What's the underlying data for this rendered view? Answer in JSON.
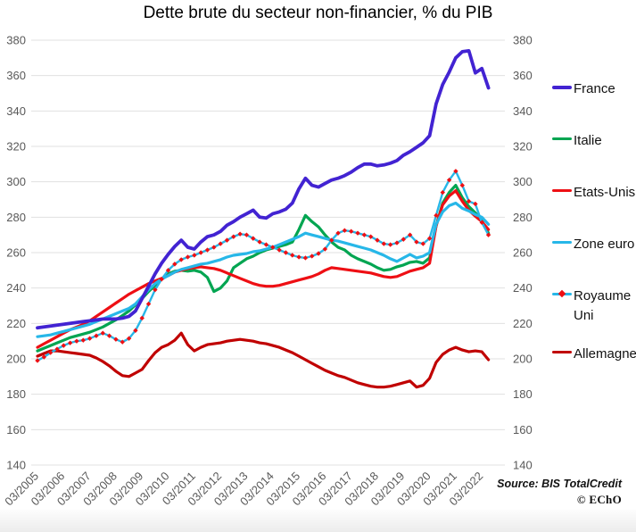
{
  "title": "Dette brute du secteur non-financier, % du PIB",
  "source": {
    "line1": "Source: BIS TotalCredit",
    "line2": "© EChO"
  },
  "chart_data": {
    "type": "line",
    "title": "Dette brute du secteur non-financier, % du PIB",
    "frequency": "quarterly",
    "x_start": "2005-Q1",
    "x_end": "2022-Q2",
    "x_tick_labels": [
      "03/2005",
      "03/2006",
      "03/2007",
      "03/2008",
      "03/2009",
      "03/2010",
      "03/2011",
      "03/2012",
      "03/2013",
      "03/2014",
      "03/2015",
      "03/2016",
      "03/2017",
      "03/2018",
      "03/2019",
      "03/2020",
      "03/2021",
      "03/2022"
    ],
    "ylim": [
      140,
      380
    ],
    "y_ticks": [
      140,
      160,
      180,
      200,
      220,
      240,
      260,
      280,
      300,
      320,
      340,
      360,
      380
    ],
    "y_tick_interval": 20,
    "grid": "horizontal",
    "legend_position": "right",
    "series": [
      {
        "name": "France",
        "color": "#4223d2",
        "width": 3.8,
        "values": [
          217.5,
          218,
          218.5,
          219,
          219.5,
          220,
          220.5,
          221,
          221.5,
          222,
          222.5,
          222.5,
          222.5,
          223,
          224,
          227,
          234,
          241,
          248,
          254,
          259,
          263.5,
          267,
          263,
          262,
          266,
          269,
          270,
          272,
          275.5,
          277.5,
          280,
          282,
          284,
          280,
          279.5,
          282,
          283,
          284.5,
          288,
          296,
          302,
          298,
          297,
          299,
          301,
          302,
          303.5,
          305.5,
          308,
          310,
          310,
          309,
          309.5,
          310.5,
          312,
          315,
          317,
          319.5,
          322,
          326,
          344,
          355,
          362,
          370,
          373.5,
          374,
          361.5,
          364,
          353
        ]
      },
      {
        "name": "Italie",
        "color": "#00a551",
        "width": 3.2,
        "values": [
          204.5,
          206,
          207.5,
          209,
          210.5,
          212,
          213,
          214,
          215,
          216.5,
          218,
          220,
          222,
          224.5,
          227,
          230.5,
          234,
          238,
          241.5,
          245,
          248,
          249.5,
          250,
          249.5,
          250,
          249,
          246,
          238,
          240,
          244,
          251.5,
          254,
          256.5,
          258,
          260,
          261.5,
          262.5,
          263.5,
          264.5,
          266,
          273,
          281,
          277.5,
          274.5,
          270,
          266,
          263,
          261.5,
          258.5,
          256.5,
          255,
          253.5,
          251.5,
          250,
          250.5,
          252,
          253,
          254.5,
          255,
          254,
          257,
          275,
          288,
          294,
          298,
          291,
          286,
          282.5,
          278,
          271
        ]
      },
      {
        "name": "Etats-Unis",
        "color": "#ee0f14",
        "width": 3.2,
        "values": [
          206.5,
          208.5,
          210.5,
          212.5,
          214.5,
          216.5,
          218,
          219.5,
          221.5,
          224,
          226.5,
          229,
          231.5,
          234,
          236.5,
          238.5,
          240.5,
          242.5,
          244,
          245.5,
          247,
          249,
          250,
          251,
          251.5,
          252,
          251.5,
          251,
          250,
          248.5,
          247,
          245.5,
          244,
          242.5,
          241.5,
          241,
          241,
          241.5,
          242.5,
          243.5,
          244.5,
          245.5,
          246.5,
          248,
          250,
          251.5,
          251,
          250.5,
          250,
          249.5,
          249,
          248.5,
          247.5,
          246.5,
          246,
          246.5,
          248,
          249.5,
          250.5,
          251.5,
          254,
          275,
          287,
          292,
          295,
          289,
          284,
          280.5,
          277.5,
          273
        ]
      },
      {
        "name": "Zone euro",
        "color": "#27b7e8",
        "width": 3.2,
        "values": [
          212.5,
          213,
          213.5,
          214.5,
          215.5,
          216.5,
          217.5,
          218.5,
          219.5,
          221,
          222.5,
          224,
          225.5,
          227,
          228.5,
          231,
          235,
          239,
          242.5,
          245,
          247,
          249,
          250.5,
          251.5,
          252.5,
          253.5,
          254,
          255,
          256,
          257.5,
          258.5,
          259,
          259.5,
          260.5,
          261,
          262,
          263,
          264.5,
          266,
          267.5,
          269,
          271,
          270,
          269,
          268,
          267,
          266.5,
          265.5,
          264.5,
          263.5,
          262.5,
          261.5,
          260,
          258.5,
          256.5,
          255,
          257,
          259,
          257,
          258,
          260,
          276,
          283,
          286.5,
          288,
          285,
          283.5,
          281.5,
          280,
          276
        ]
      },
      {
        "name": "Royaume Uni",
        "color": "#27b7e8",
        "width": 2.4,
        "wrap": true,
        "marker": {
          "shape": "diamond",
          "color": "#ee0f14"
        },
        "values": [
          199,
          201,
          203.5,
          205.5,
          207.5,
          209,
          210,
          210.5,
          211.5,
          213,
          214.5,
          213,
          211,
          209.5,
          211.5,
          216,
          223,
          231,
          239,
          245,
          250,
          253.5,
          256,
          257.5,
          258.5,
          260,
          261.5,
          263,
          265,
          267,
          269,
          270.5,
          270,
          268,
          266,
          264.5,
          263,
          261.5,
          260,
          258.5,
          257.5,
          257,
          258,
          259.5,
          262,
          267,
          271,
          272.5,
          272,
          271,
          270,
          269,
          267,
          265,
          264.5,
          265.5,
          267.5,
          270,
          266,
          265,
          268,
          281,
          294,
          301,
          306,
          298,
          289,
          287.5,
          277,
          270
        ]
      },
      {
        "name": "Allemagne",
        "color": "#c00000",
        "width": 3.2,
        "values": [
          201.5,
          203,
          204.5,
          204.5,
          204,
          203.5,
          203,
          202.5,
          202,
          200.5,
          198.5,
          196,
          193,
          190.5,
          190,
          192,
          194,
          199,
          203.5,
          206.5,
          208,
          210.5,
          214.5,
          208,
          204.5,
          206.5,
          208,
          208.5,
          209,
          210,
          210.5,
          211,
          210.5,
          210,
          209,
          208.5,
          207.5,
          206.5,
          205,
          203.5,
          201.5,
          199.5,
          197.5,
          195.5,
          193.5,
          192,
          190.5,
          189.5,
          188,
          186.5,
          185.5,
          184.5,
          184,
          184,
          184.5,
          185.5,
          186.5,
          187.5,
          184,
          185,
          189,
          198,
          202.5,
          205,
          206.5,
          205,
          204,
          204.5,
          204,
          199.5
        ]
      }
    ]
  }
}
